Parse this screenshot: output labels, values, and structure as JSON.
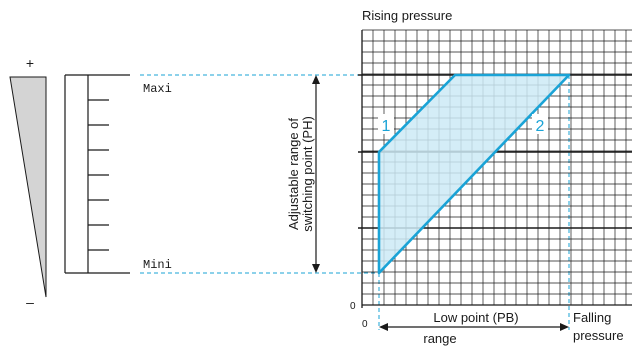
{
  "scale": {
    "plus_sign": "+",
    "minus_sign": "–",
    "max_label": "Maxi",
    "min_label": "Mini"
  },
  "chart": {
    "top_label": "Rising pressure",
    "vertical_label_line1": "Adjustable range of",
    "vertical_label_line2": "switching point (PH)",
    "curve_1_label": "1",
    "curve_2_label": "2",
    "y_origin_label": "0",
    "x_origin_label": "0",
    "low_point_line1": "Low point (PB)",
    "low_point_line2": "range",
    "falling_line1": "Falling",
    "falling_line2": "pressure"
  },
  "colors": {
    "accent_blue": "#1aa3d6",
    "fill_blue": "#cdeaf6",
    "wedge_gray": "#d4d4d4",
    "grid_line": "#1a1a1a"
  }
}
